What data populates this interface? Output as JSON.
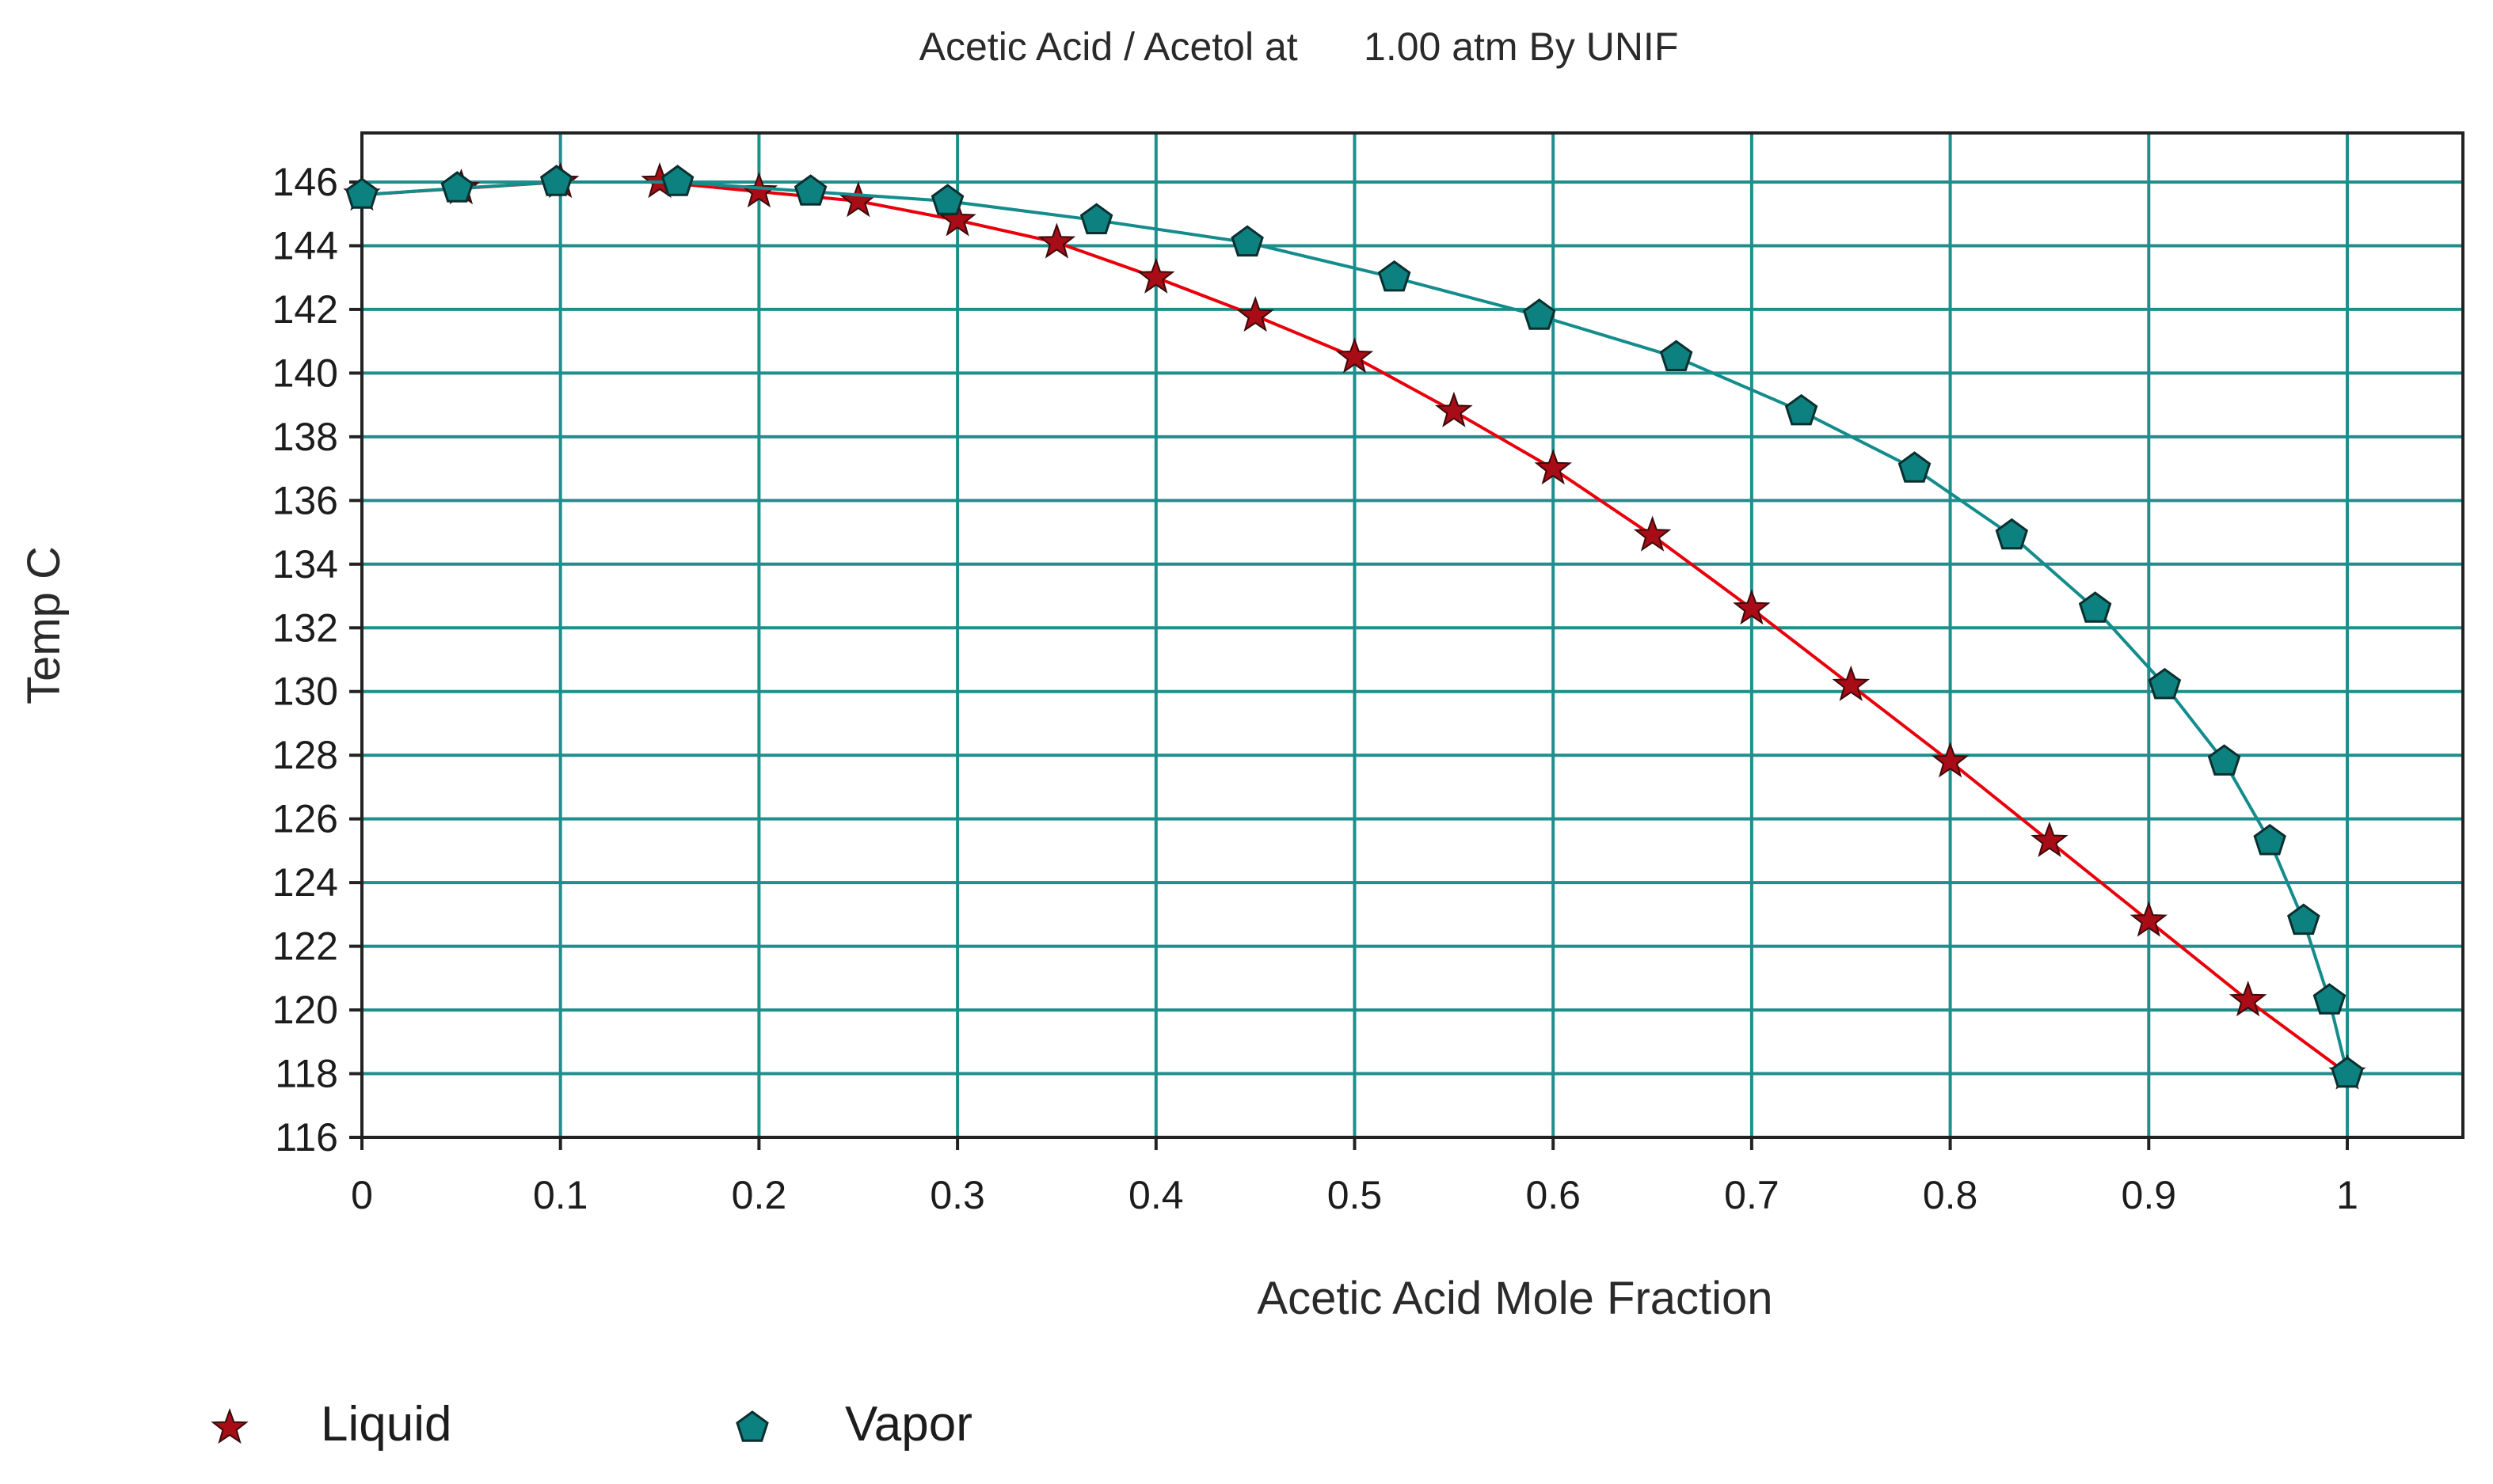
{
  "chart_data": {
    "type": "line",
    "title": "Acetic Acid / Acetol at      1.00 atm By UNIF",
    "xlabel": "Acetic Acid Mole Fraction",
    "ylabel": "Temp C",
    "xlim": [
      0,
      1
    ],
    "ylim": [
      116,
      146
    ],
    "xticks": [
      "0",
      "0.1",
      "0.2",
      "0.3",
      "0.4",
      "0.5",
      "0.6",
      "0.7",
      "0.8",
      "0.9",
      "1"
    ],
    "yticks": [
      "146",
      "144",
      "142",
      "140",
      "138",
      "136",
      "134",
      "132",
      "130",
      "128",
      "126",
      "124",
      "122",
      "120",
      "118",
      "116"
    ],
    "grid": true,
    "legend_position": "bottom-left",
    "series": [
      {
        "name": "Liquid",
        "marker": "star",
        "color": "#e8000b",
        "marker_color": "#a80c16",
        "x": [
          0,
          0.05,
          0.1,
          0.15,
          0.2,
          0.25,
          0.3,
          0.35,
          0.4,
          0.45,
          0.5,
          0.55,
          0.6,
          0.65,
          0.7,
          0.75,
          0.8,
          0.85,
          0.9,
          0.95,
          1.0
        ],
        "y": [
          145.6,
          145.8,
          146.0,
          146.0,
          145.7,
          145.4,
          144.8,
          144.1,
          143.0,
          141.8,
          140.5,
          138.8,
          137.0,
          134.9,
          132.6,
          130.2,
          127.8,
          125.3,
          122.8,
          120.3,
          118.0
        ]
      },
      {
        "name": "Vapor",
        "marker": "pentagon",
        "color": "#158c8c",
        "marker_color": "#0d8080",
        "x": [
          0,
          0.048,
          0.098,
          0.159,
          0.226,
          0.295,
          0.37,
          0.446,
          0.52,
          0.593,
          0.662,
          0.725,
          0.782,
          0.831,
          0.873,
          0.908,
          0.938,
          0.961,
          0.978,
          0.991,
          1.0
        ],
        "y": [
          145.6,
          145.8,
          146.0,
          146.0,
          145.7,
          145.4,
          144.8,
          144.1,
          143.0,
          141.8,
          140.5,
          138.8,
          137.0,
          134.9,
          132.6,
          130.2,
          127.8,
          125.3,
          122.8,
          120.3,
          118.0
        ]
      }
    ]
  }
}
